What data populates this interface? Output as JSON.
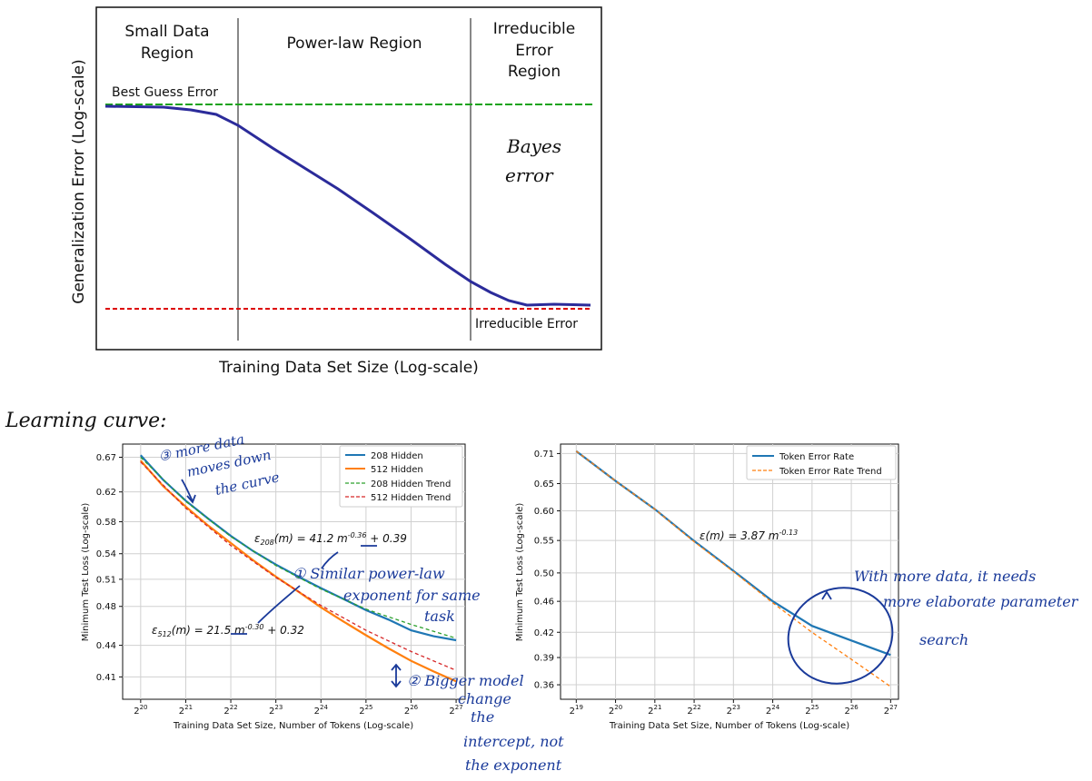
{
  "top_chart": {
    "regions": [
      "Small Data Region",
      "Power-law Region",
      "Irreducible Error Region"
    ],
    "best_guess_label": "Best Guess Error",
    "irreducible_label": "Irreducible Error",
    "xlabel": "Training Data Set Size (Log-scale)",
    "ylabel": "Generalization Error (Log-scale)",
    "annotation": "Bayes error",
    "colors": {
      "curve": "#2b2b9a",
      "best_guess": "#1aa31a",
      "irreducible": "#dd0000",
      "region_line": "#888888"
    }
  },
  "section_label": "Learning curve:",
  "chart_data": [
    {
      "type": "line",
      "xlabel": "Training Data Set Size, Number of Tokens (Log-scale)",
      "ylabel": "Minimum Test Loss (Log-scale)",
      "x_ticks": [
        "2^20",
        "2^21",
        "2^22",
        "2^23",
        "2^24",
        "2^25",
        "2^26",
        "2^27"
      ],
      "x_exponents": [
        20,
        21,
        22,
        23,
        24,
        25,
        26,
        27
      ],
      "y_ticks": [
        0.67,
        0.62,
        0.58,
        0.54,
        0.51,
        0.48,
        0.44,
        0.41
      ],
      "xlim_exp": [
        19.6,
        27.2
      ],
      "ylim": [
        0.39,
        0.69
      ],
      "legend_position": "top-right",
      "series": [
        {
          "name": "208 Hidden",
          "color": "#1f77b4",
          "style": "solid",
          "x_exp": [
            20,
            20.5,
            21,
            21.5,
            22,
            22.5,
            23,
            23.5,
            24,
            24.5,
            25,
            25.5,
            26,
            26.5,
            27
          ],
          "values": [
            0.673,
            0.637,
            0.608,
            0.584,
            0.562,
            0.543,
            0.527,
            0.513,
            0.5,
            0.488,
            0.476,
            0.466,
            0.455,
            0.449,
            0.445
          ]
        },
        {
          "name": "512 Hidden",
          "color": "#ff7f0e",
          "style": "solid",
          "x_exp": [
            20,
            20.5,
            21,
            21.5,
            22,
            22.5,
            23,
            23.5,
            24,
            24.5,
            25,
            25.5,
            26,
            26.5,
            27
          ],
          "values": [
            0.665,
            0.628,
            0.6,
            0.575,
            0.553,
            0.532,
            0.513,
            0.496,
            0.479,
            0.464,
            0.45,
            0.437,
            0.425,
            0.415,
            0.406
          ]
        },
        {
          "name": "208 Hidden Trend",
          "color": "#2ca02c",
          "style": "dashed",
          "x_exp": [
            20,
            21,
            22,
            23,
            24,
            25,
            26,
            27
          ],
          "values": [
            0.67,
            0.607,
            0.561,
            0.526,
            0.499,
            0.477,
            0.461,
            0.447
          ]
        },
        {
          "name": "512 Hidden Trend",
          "color": "#d62728",
          "style": "dashed",
          "x_exp": [
            20,
            21,
            22,
            23,
            24,
            25,
            26,
            27
          ],
          "values": [
            0.663,
            0.598,
            0.55,
            0.512,
            0.481,
            0.455,
            0.434,
            0.416
          ]
        }
      ],
      "equations": [
        {
          "prefix": "ε",
          "sub": "208",
          "mid": "(m) = 41.2 m",
          "sup": "-0.36",
          "suffix": " + 0.39"
        },
        {
          "prefix": "ε",
          "sub": "512",
          "mid": "(m) = 21.5 m",
          "sup": "-0.30",
          "suffix": " + 0.32"
        }
      ]
    },
    {
      "type": "line",
      "xlabel": "Training Data Set Size, Number of Tokens (Log-scale)",
      "ylabel": "Minimum Test Loss (Log-scale)",
      "x_ticks": [
        "2^19",
        "2^20",
        "2^21",
        "2^22",
        "2^23",
        "2^24",
        "2^25",
        "2^26",
        "2^27"
      ],
      "x_exponents": [
        19,
        20,
        21,
        22,
        23,
        24,
        25,
        26,
        27
      ],
      "y_ticks": [
        0.71,
        0.65,
        0.6,
        0.55,
        0.5,
        0.46,
        0.42,
        0.39,
        0.36
      ],
      "y_tick_labels": [
        "0.71",
        "0.65",
        "0.60",
        "0.55",
        "0.50",
        "0.46",
        "0.42",
        "0.39",
        "0.36"
      ],
      "xlim_exp": [
        18.6,
        27.2
      ],
      "ylim": [
        0.345,
        0.73
      ],
      "legend_position": "top-right",
      "series": [
        {
          "name": "Token Error Rate",
          "color": "#1f77b4",
          "style": "solid",
          "x_exp": [
            19,
            20,
            21,
            22,
            23,
            24,
            25,
            26,
            27
          ],
          "values": [
            0.715,
            0.655,
            0.603,
            0.549,
            0.503,
            0.46,
            0.428,
            0.41,
            0.393
          ]
        },
        {
          "name": "Token Error Rate Trend",
          "color": "#ff7f0e",
          "style": "dashed",
          "x_exp": [
            19,
            20,
            21,
            22,
            23,
            24,
            25,
            26,
            27
          ],
          "values": [
            0.715,
            0.655,
            0.603,
            0.548,
            0.502,
            0.458,
            0.42,
            0.388,
            0.358
          ]
        }
      ],
      "equations": [
        {
          "prefix": "ε",
          "sub": "",
          "mid": "(m) = 3.87 m",
          "sup": "-0.13",
          "suffix": ""
        }
      ]
    }
  ],
  "handwritten": {
    "note3": [
      "③ more data",
      "moves down",
      "the curve"
    ],
    "note1": [
      "① Similar power-law",
      "exponent for same",
      "task"
    ],
    "note2": [
      "② Bigger model",
      "change",
      "the",
      "intercept, not",
      "the exponent"
    ],
    "note_right": [
      "With more data, it needs",
      "more elaborate parameter",
      "search"
    ]
  }
}
